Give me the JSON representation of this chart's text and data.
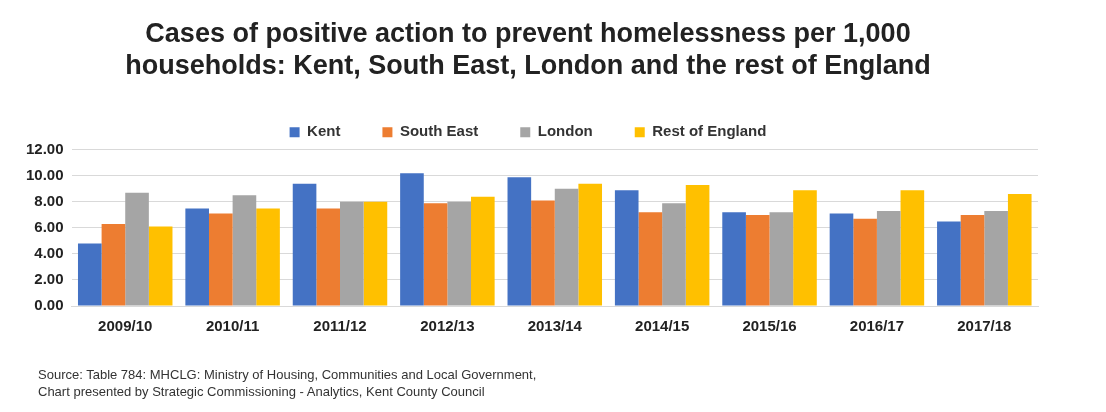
{
  "chart_data": {
    "type": "bar",
    "title": "Cases of positive action to prevent homelessness per 1,000 households: Kent, South East, London and the rest of England",
    "categories": [
      "2009/10",
      "2010/11",
      "2011/12",
      "2012/13",
      "2013/14",
      "2014/15",
      "2015/16",
      "2016/17",
      "2017/18"
    ],
    "series": [
      {
        "name": "Kent",
        "color": "#4472c4",
        "values": [
          4.8,
          7.5,
          9.4,
          10.2,
          9.9,
          8.9,
          7.2,
          7.1,
          6.5
        ]
      },
      {
        "name": "South East",
        "color": "#ed7d31",
        "values": [
          6.3,
          7.1,
          7.5,
          7.9,
          8.1,
          7.2,
          7.0,
          6.7,
          7.0
        ]
      },
      {
        "name": "London",
        "color": "#a5a5a5",
        "values": [
          8.7,
          8.5,
          8.0,
          8.0,
          9.0,
          7.9,
          7.2,
          7.3,
          7.3
        ]
      },
      {
        "name": "Rest of England",
        "color": "#ffc000",
        "values": [
          6.1,
          7.5,
          8.0,
          8.4,
          9.4,
          9.3,
          8.9,
          8.9,
          8.6
        ]
      }
    ],
    "ylim": [
      0,
      12
    ],
    "yticks": [
      {
        "value": 0,
        "label": "0.00"
      },
      {
        "value": 2,
        "label": "2.00"
      },
      {
        "value": 4,
        "label": "4.00"
      },
      {
        "value": 6,
        "label": "6.00"
      },
      {
        "value": 8,
        "label": "8.00"
      },
      {
        "value": 10,
        "label": "10.00"
      },
      {
        "value": 12,
        "label": "12.00"
      }
    ],
    "grid": "y",
    "legend": "top",
    "annotations": [
      "Source: Table 784: MHCLG: Ministry of Housing, Communities and Local Government,",
      "Chart presented by Strategic Commissioning - Analytics, Kent County Council"
    ]
  }
}
